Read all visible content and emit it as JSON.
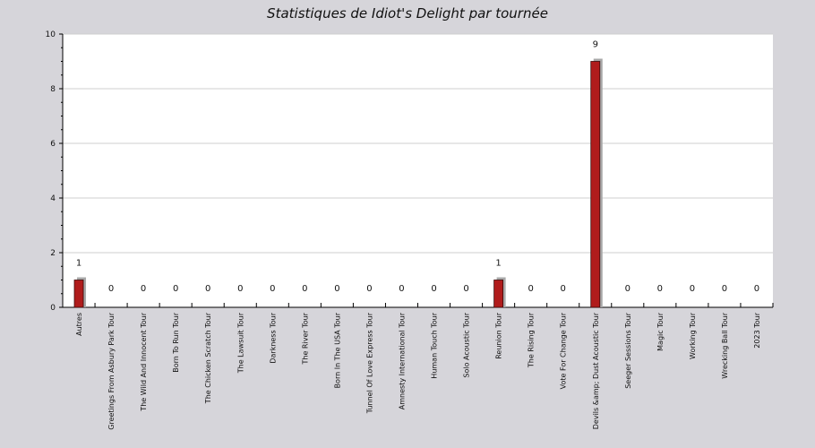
{
  "chart_data": {
    "type": "bar",
    "title": "Statistiques de Idiot's Delight par tournée",
    "xlabel": "",
    "ylabel": "",
    "ylim": [
      0,
      10
    ],
    "yticks": [
      0,
      2,
      4,
      6,
      8,
      10
    ],
    "grid": true,
    "legend": "none",
    "categories": [
      "Autres",
      "Greetings From Asbury Park Tour",
      "The Wild And Innocent Tour",
      "Born To Run Tour",
      "The Chicken Scratch Tour",
      "The Lawsuit Tour",
      "Darkness Tour",
      "The River Tour",
      "Born In The USA Tour",
      "Tunnel Of Love Express Tour",
      "Amnesty International Tour",
      "Human Touch Tour",
      "Solo Acoustic Tour",
      "Reunion Tour",
      "The Rising Tour",
      "Vote For Change Tour",
      "Devils &amp; Dust Acoustic Tour",
      "Seeger Sessions Tour",
      "Magic Tour",
      "Working Tour",
      "Wrecking Ball Tour",
      "2023 Tour"
    ],
    "values": [
      1,
      0,
      0,
      0,
      0,
      0,
      0,
      0,
      0,
      0,
      0,
      0,
      0,
      1,
      0,
      0,
      9,
      0,
      0,
      0,
      0,
      0
    ],
    "colors": {
      "bar": "#b01c1c",
      "bar_border": "#3a0a0a",
      "shadow": "#a8a8a8",
      "plot_bg": "#ffffff",
      "page_bg": "#d6d5da",
      "grid": "#cfcfcf"
    }
  }
}
